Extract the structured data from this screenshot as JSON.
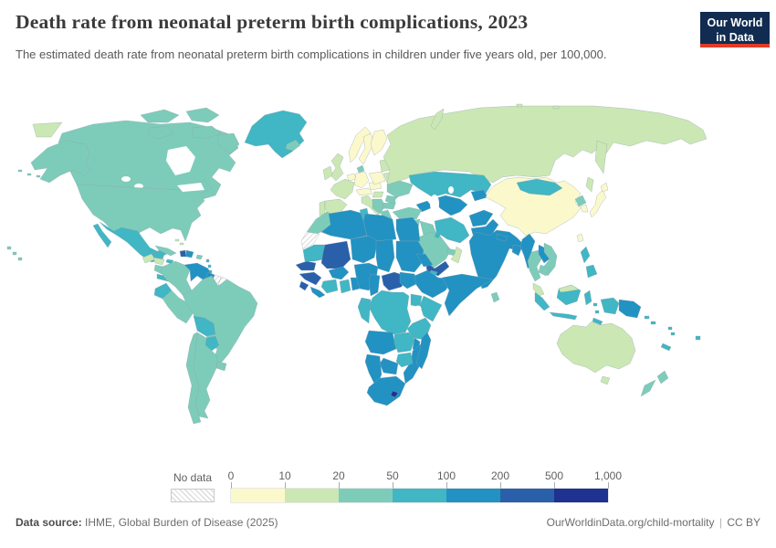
{
  "header": {
    "title": "Death rate from neonatal preterm birth complications, 2023",
    "subtitle": "The estimated death rate from neonatal preterm birth complications in children under five years old, per 100,000.",
    "logo": {
      "line1": "Our World",
      "line2": "in Data",
      "bg_color": "#122c51",
      "accent_color": "#e23b27"
    }
  },
  "legend": {
    "no_data_label": "No data",
    "tick_labels": [
      "0",
      "10",
      "20",
      "50",
      "100",
      "200",
      "500",
      "1,000"
    ],
    "bins": [
      {
        "range": "0-10",
        "color": "#fbf8cc"
      },
      {
        "range": "10-20",
        "color": "#cbe7b4"
      },
      {
        "range": "20-50",
        "color": "#7dccb9"
      },
      {
        "range": "50-100",
        "color": "#41b6c4"
      },
      {
        "range": "100-200",
        "color": "#2292c2"
      },
      {
        "range": "200-500",
        "color": "#2a60aa"
      },
      {
        "range": "500-1000",
        "color": "#1f3290"
      }
    ]
  },
  "chart_data": {
    "type": "choropleth",
    "title": "Death rate from neonatal preterm birth complications, 2023",
    "unit": "deaths per 100,000 children under five years old",
    "legend_ranges": [
      "0-10",
      "10-20",
      "20-50",
      "50-100",
      "100-200",
      "200-500",
      "500-1000"
    ],
    "regions": {
      "greenland": "50-100",
      "iceland": "20-50",
      "canada": "20-50",
      "usa": "20-50",
      "mexico": "50-100",
      "guatemala": "10-20",
      "honduras": "10-20",
      "nicaragua": "20-50",
      "costa-rica-panama": "50-100",
      "cuba": "20-50",
      "jamaica": "50-100",
      "haiti": "200-500",
      "dominican-republic": "100-200",
      "puerto-rico": "20-50",
      "lesser-antilles": "50-100",
      "trinidad-and-tobago": "200-500",
      "bahamas": "10-20",
      "colombia": "20-50",
      "venezuela": "100-200",
      "guyana": "100-200",
      "suriname": "no-data",
      "french-guiana": "no-data",
      "ecuador": "50-100",
      "peru": "20-50",
      "brazil": "20-50",
      "bolivia": "50-100",
      "paraguay": "50-100",
      "uruguay": "20-50",
      "argentina": "20-50",
      "chile": "20-50",
      "norway": "0-10",
      "sweden": "0-10",
      "finland": "0-10",
      "denmark": "20-50",
      "united-kingdom": "10-20",
      "ireland": "10-20",
      "portugal": "10-20",
      "spain": "10-20",
      "france": "10-20",
      "belgium-netherlands": "0-10",
      "germany": "0-10",
      "switzerland-austria": "0-10",
      "czechia-slovakia": "0-10",
      "poland": "0-10",
      "italy": "10-20",
      "baltics": "10-20",
      "belarus": "10-20",
      "ukraine": "20-50",
      "romania-moldova": "20-50",
      "hungary": "10-20",
      "balkans": "20-50",
      "bulgaria": "20-50",
      "greece": "20-50",
      "russia": "10-20",
      "kazakhstan": "50-100",
      "mongolia": "50-100",
      "china": "0-10",
      "japan": "0-10",
      "north-korea": "20-50",
      "south-korea": "0-10",
      "taiwan": "0-10",
      "caucasus": "100-200",
      "turkey": "20-50",
      "syria": "20-50",
      "iraq": "20-50",
      "israel": "10-20",
      "jordan": "20-50",
      "saudi-arabia": "20-50",
      "kuwait": "50-100",
      "uae": "20-50",
      "oman": "10-20",
      "yemen": "200-500",
      "iran": "50-100",
      "uzbekistan-turkmenistan": "100-200",
      "kyrgyzstan-tajikistan": "100-200",
      "afghanistan": "100-200",
      "pakistan": "100-200",
      "india": "100-200",
      "nepal": "100-200",
      "bangladesh": "100-200",
      "sri-lanka": "20-50",
      "myanmar": "100-200",
      "thailand": "20-50",
      "laos": "100-200",
      "vietnam": "20-50",
      "cambodia": "20-50",
      "malaysia": "10-20",
      "indonesia": "50-100",
      "philippines": "50-100",
      "papua-new-guinea": "100-200",
      "australia": "10-20",
      "new-zealand": "20-50",
      "fiji": "50-100",
      "solomon-islands": "50-100",
      "vanuatu": "50-100",
      "new-caledonia": "50-100",
      "morocco": "20-50",
      "western-sahara": "no-data",
      "algeria": "100-200",
      "tunisia": "50-100",
      "libya": "100-200",
      "egypt": "100-200",
      "mauritania": "50-100",
      "mali": "200-500",
      "niger": "100-200",
      "chad": "100-200",
      "sudan": "100-200",
      "eritrea": "100-200",
      "djibouti": "50-100",
      "ethiopia": "100-200",
      "somalia": "100-200",
      "south-sudan": "100-200",
      "senegal": "200-500",
      "guinea": "200-500",
      "sierra-leone": "200-500",
      "liberia": "100-200",
      "cote-divoire": "50-100",
      "ghana": "50-100",
      "burkina-faso": "100-200",
      "benin-togo": "100-200",
      "nigeria": "100-200",
      "cameroon": "100-200",
      "central-african-republic": "200-500",
      "kenya": "50-100",
      "uganda": "50-100",
      "tanzania": "50-100",
      "dr-congo": "50-100",
      "congo-gabon": "50-100",
      "angola": "100-200",
      "zambia": "50-100",
      "malawi": "100-200",
      "mozambique": "100-200",
      "zimbabwe": "50-100",
      "botswana": "100-200",
      "namibia": "100-200",
      "south-africa": "100-200",
      "lesotho": "500-1000",
      "madagascar": "100-200"
    }
  },
  "footer": {
    "source_label": "Data source:",
    "source": "IHME, Global Burden of Disease (2025)",
    "link": "OurWorldinData.org/child-mortality",
    "separator": "|",
    "license": "CC BY"
  }
}
